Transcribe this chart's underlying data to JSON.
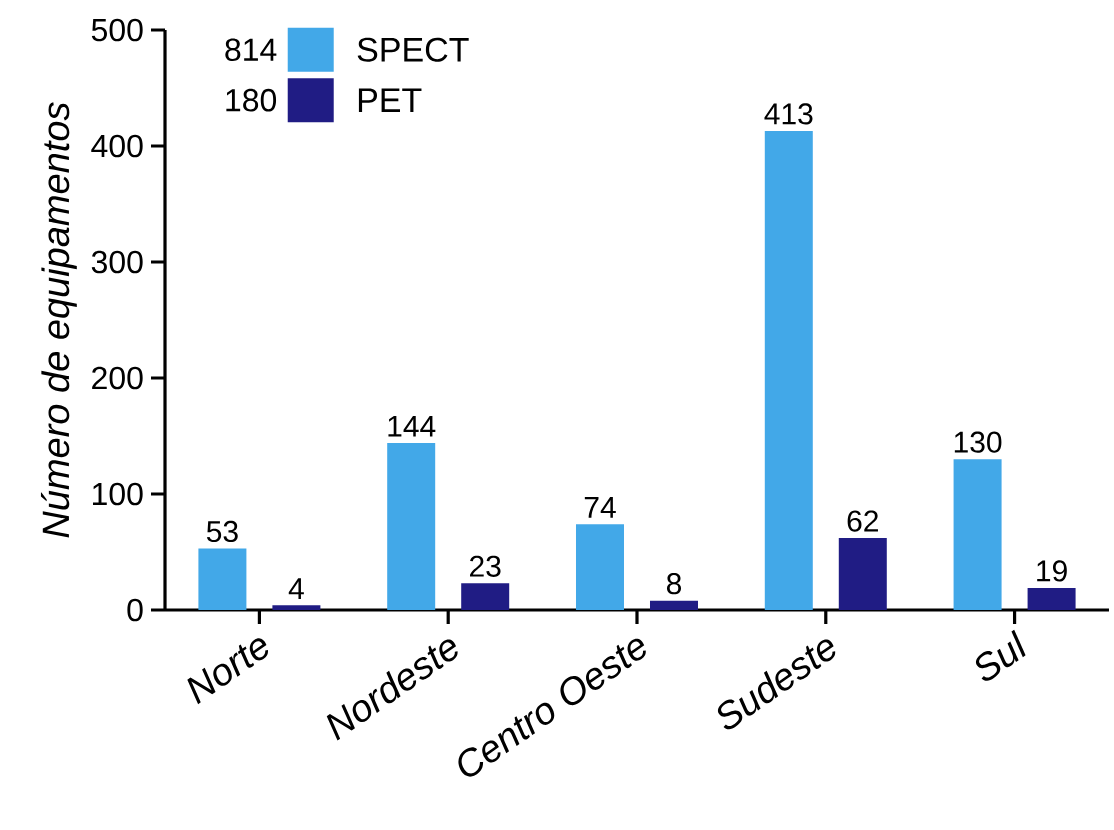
{
  "chart_data": {
    "type": "bar",
    "ylabel": "Número de equipamentos",
    "categories": [
      "Norte",
      "Nordeste",
      "Centro Oeste",
      "Sudeste",
      "Sul"
    ],
    "series": [
      {
        "name": "SPECT",
        "color": "#42a8e8",
        "values": [
          53,
          144,
          74,
          413,
          130
        ]
      },
      {
        "name": "PET",
        "color": "#201c84",
        "values": [
          4,
          23,
          8,
          62,
          19
        ]
      }
    ],
    "annotations": [
      "814",
      "180"
    ],
    "ylim": [
      0,
      500
    ],
    "yticks": [
      0,
      100,
      200,
      300,
      400,
      500
    ],
    "data_labels": true,
    "legend": "top left",
    "grid": false
  }
}
